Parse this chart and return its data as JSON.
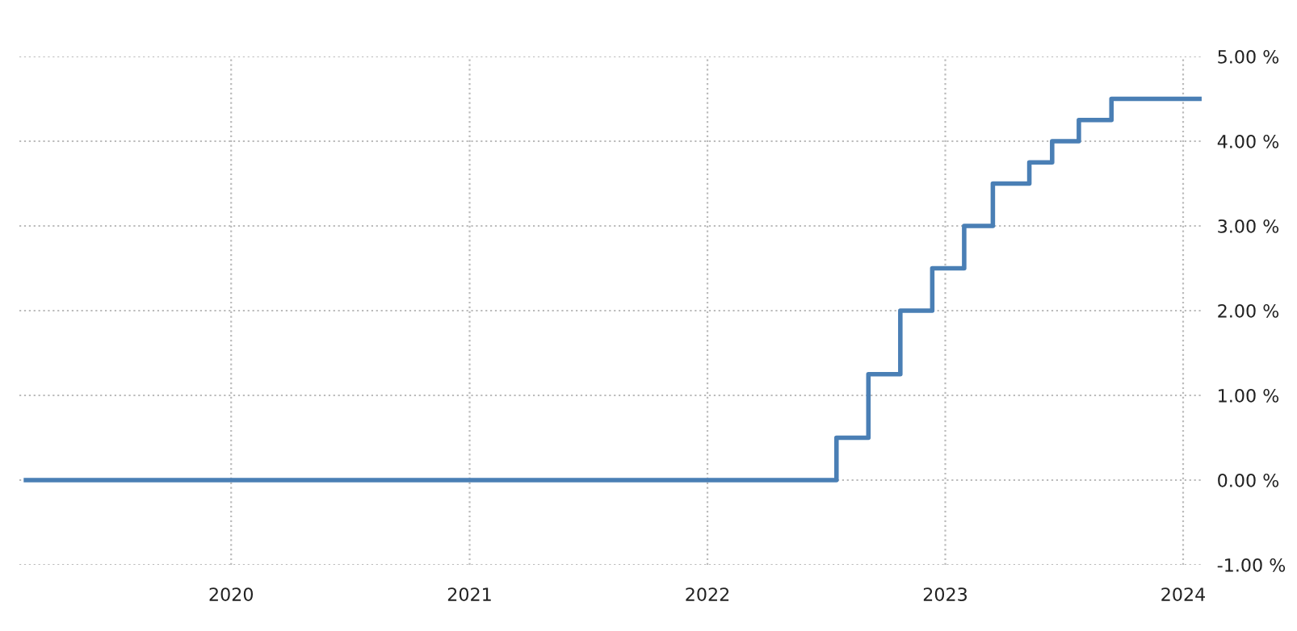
{
  "chart_data": {
    "type": "step",
    "x": [
      "2019-02-20",
      "2022-07-18",
      "2022-09-05",
      "2022-10-24",
      "2022-12-12",
      "2023-01-30",
      "2023-03-15",
      "2023-05-10",
      "2023-06-14",
      "2023-07-25",
      "2023-09-13",
      "2024-01-26"
    ],
    "series": [
      {
        "color": "#4a7fb5",
        "values": [
          0,
          0.5,
          1.25,
          2.0,
          2.5,
          3.0,
          3.5,
          3.75,
          4.0,
          4.25,
          4.5,
          4.5
        ]
      }
    ],
    "xlim": [
      "2019-02-10",
      "2024-02-01"
    ],
    "xticks": [
      "2020",
      "2021",
      "2022",
      "2023",
      "2024"
    ],
    "ylim": [
      -1,
      5
    ],
    "yticks": [
      {
        "value": -1,
        "label": "-1.00 %"
      },
      {
        "value": 0,
        "label": "0.00 %"
      },
      {
        "value": 1,
        "label": "1.00 %"
      },
      {
        "value": 2,
        "label": "2.00 %"
      },
      {
        "value": 3,
        "label": "3.00 %"
      },
      {
        "value": 4,
        "label": "4.00 %"
      },
      {
        "value": 5,
        "label": "5.00 %"
      }
    ],
    "grid": true,
    "line_style": "solid",
    "marker": "none",
    "legend": false
  }
}
